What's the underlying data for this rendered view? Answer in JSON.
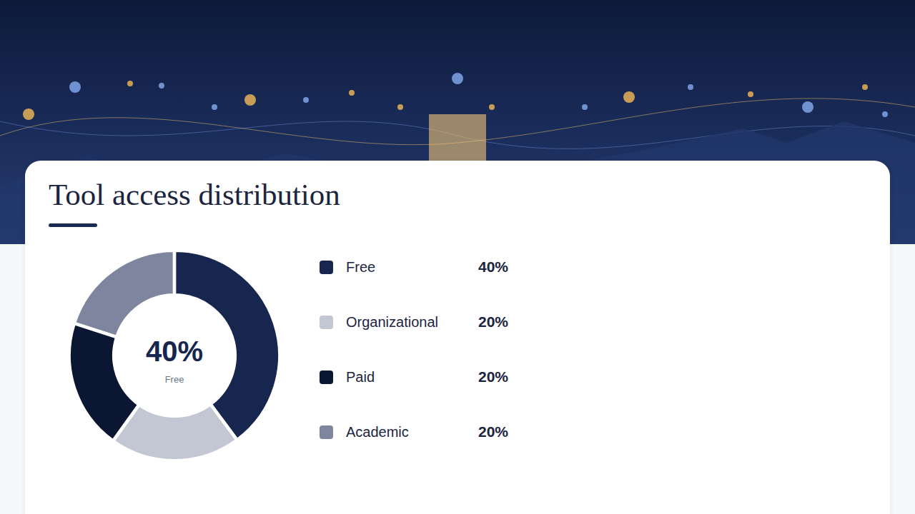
{
  "chart_data": {
    "type": "pie",
    "title": "Tool access distribution",
    "categories": [
      "Free",
      "Organizational",
      "Paid",
      "Academic"
    ],
    "values": [
      40,
      20,
      20,
      20
    ],
    "value_labels": [
      "40%",
      "20%",
      "20%",
      "20%"
    ],
    "colors": [
      "#16264f",
      "#c3c7d3",
      "#0b1633",
      "#7d869e"
    ],
    "legend": "right"
  }
}
